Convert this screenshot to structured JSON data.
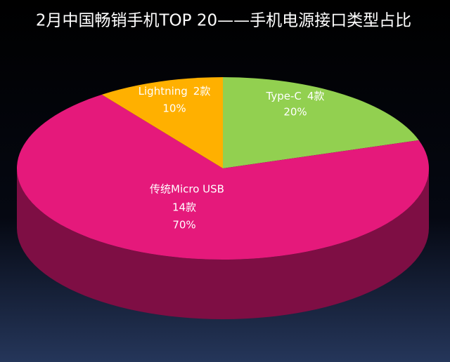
{
  "chart_data": {
    "type": "pie3d",
    "title": "2月中国畅销手机TOP 20——手机电源接口类型占比",
    "categories": [
      "Type-C",
      "传统Micro USB",
      "Lightning"
    ],
    "values": [
      20,
      70,
      10
    ],
    "value_labels": [
      "20%",
      "70%",
      "10%"
    ],
    "counts": [
      4,
      14,
      2
    ],
    "count_labels": [
      "4款",
      "14款",
      "2款"
    ],
    "colors": [
      "#92d050",
      "#e5197b",
      "#ffb000"
    ]
  }
}
